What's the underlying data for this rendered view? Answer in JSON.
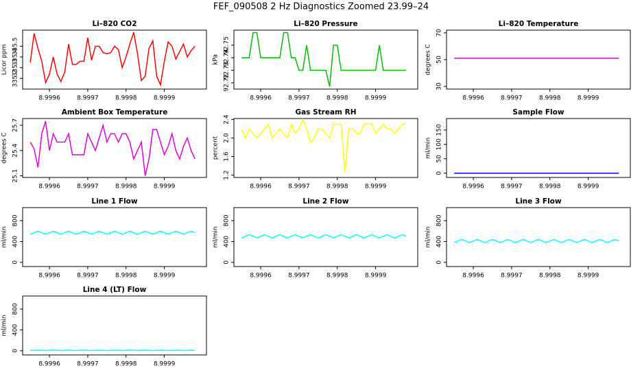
{
  "title": "FEF_090508  2 Hz Diagnostics Zoomed 23.99–24",
  "chart_data": [
    {
      "type": "line",
      "title": "Li–820 CO2",
      "y_label": "Licor ppm",
      "color": "#ff0000",
      "x": [
        8.99955,
        8.99956,
        8.99957,
        8.99958,
        8.99959,
        8.9996,
        8.99961,
        8.99962,
        8.99963,
        8.99964,
        8.99965,
        8.99966,
        8.99967,
        8.99968,
        8.99969,
        8.9997,
        8.99971,
        8.99972,
        8.99973,
        8.99974,
        8.99975,
        8.99976,
        8.99977,
        8.99978,
        8.99979,
        8.9998,
        8.99981,
        8.99982,
        8.99983,
        8.99984,
        8.99985,
        8.99986,
        8.99987,
        8.99988,
        8.99989,
        8.9999,
        8.99991,
        8.99992,
        8.99993,
        8.99994,
        8.99995,
        8.99996,
        8.99997,
        8.99998
      ],
      "values": [
        335.35,
        335.62,
        335.48,
        335.36,
        335.16,
        335.24,
        335.4,
        335.24,
        335.17,
        335.26,
        335.52,
        335.33,
        335.33,
        335.36,
        335.36,
        335.58,
        335.37,
        335.5,
        335.5,
        335.44,
        335.43,
        335.44,
        335.5,
        335.47,
        335.3,
        335.4,
        335.52,
        335.63,
        335.43,
        335.18,
        335.22,
        335.48,
        335.55,
        335.22,
        335.14,
        335.36,
        335.54,
        335.5,
        335.38,
        335.45,
        335.52,
        335.4,
        335.46,
        335.5
      ],
      "xlim": [
        8.99953,
        9.00001
      ],
      "xticks": [
        8.9996,
        8.9997,
        8.9998,
        8.9999
      ],
      "ylim": [
        335.1,
        335.65
      ],
      "yticks": [
        335.2,
        335.3,
        335.4,
        335.5
      ]
    },
    {
      "type": "line",
      "title": "Li–820 Pressure",
      "y_label": "kPa",
      "color": "#00c000",
      "x": [
        8.99955,
        8.99956,
        8.99957,
        8.99958,
        8.99959,
        8.9996,
        8.99961,
        8.99962,
        8.99963,
        8.99964,
        8.99965,
        8.99966,
        8.99967,
        8.99968,
        8.99969,
        8.9997,
        8.99971,
        8.99972,
        8.99973,
        8.99974,
        8.99975,
        8.99976,
        8.99977,
        8.99978,
        8.99979,
        8.9998,
        8.99981,
        8.99982,
        8.99983,
        8.99984,
        8.99985,
        8.99986,
        8.99987,
        8.99988,
        8.99989,
        8.9999,
        8.99991,
        8.99992,
        8.99993,
        8.99994,
        8.99995,
        8.99996,
        8.99997,
        8.99998
      ],
      "values": [
        92.74,
        92.74,
        92.74,
        92.76,
        92.76,
        92.74,
        92.74,
        92.74,
        92.74,
        92.74,
        92.74,
        92.76,
        92.76,
        92.74,
        92.74,
        92.73,
        92.73,
        92.75,
        92.73,
        92.73,
        92.73,
        92.73,
        92.73,
        92.717,
        92.75,
        92.75,
        92.73,
        92.73,
        92.73,
        92.73,
        92.73,
        92.73,
        92.73,
        92.73,
        92.73,
        92.73,
        92.75,
        92.73,
        92.73,
        92.73,
        92.73,
        92.73,
        92.73,
        92.73
      ],
      "xlim": [
        8.99953,
        9.00001
      ],
      "xticks": [
        8.9996,
        8.9997,
        8.9998,
        8.9999
      ],
      "ylim": [
        92.715,
        92.762
      ],
      "yticks": [
        92.72,
        92.73,
        92.74,
        92.75
      ]
    },
    {
      "type": "line",
      "title": "Li–820 Temperature",
      "y_label": "degrees C",
      "color": "#e000e0",
      "x": [
        8.99955,
        8.99956,
        8.99957,
        8.99958,
        8.99959,
        8.9996,
        8.99961,
        8.99962,
        8.99963,
        8.99964,
        8.99965,
        8.99966,
        8.99967,
        8.99968,
        8.99969,
        8.9997,
        8.99971,
        8.99972,
        8.99973,
        8.99974,
        8.99975,
        8.99976,
        8.99977,
        8.99978,
        8.99979,
        8.9998,
        8.99981,
        8.99982,
        8.99983,
        8.99984,
        8.99985,
        8.99986,
        8.99987,
        8.99988,
        8.99989,
        8.9999,
        8.99991,
        8.99992,
        8.99993,
        8.99994,
        8.99995,
        8.99996,
        8.99997,
        8.99998
      ],
      "values": [
        51,
        51,
        51,
        51,
        51,
        51,
        51,
        51,
        51,
        51,
        51,
        51,
        51,
        51,
        51,
        51,
        51,
        51,
        51,
        51,
        51,
        51,
        51,
        51,
        51,
        51,
        51,
        51,
        51,
        51,
        51,
        51,
        51,
        51,
        51,
        51,
        51,
        51,
        51,
        51,
        51,
        51,
        51,
        51
      ],
      "xlim": [
        8.99953,
        9.00001
      ],
      "xticks": [
        8.9996,
        8.9997,
        8.9998,
        8.9999
      ],
      "ylim": [
        28,
        72
      ],
      "yticks": [
        30,
        50,
        70
      ]
    },
    {
      "type": "line",
      "title": "Ambient Box Temperature",
      "y_label": "degrees C",
      "color": "#e000e0",
      "x": [
        8.99955,
        8.99956,
        8.99957,
        8.99958,
        8.99959,
        8.9996,
        8.99961,
        8.99962,
        8.99963,
        8.99964,
        8.99965,
        8.99966,
        8.99967,
        8.99968,
        8.99969,
        8.9997,
        8.99971,
        8.99972,
        8.99973,
        8.99974,
        8.99975,
        8.99976,
        8.99977,
        8.99978,
        8.99979,
        8.9998,
        8.99981,
        8.99982,
        8.99983,
        8.99984,
        8.99985,
        8.99986,
        8.99987,
        8.99988,
        8.99989,
        8.9999,
        8.99991,
        8.99992,
        8.99993,
        8.99994,
        8.99995,
        8.99996,
        8.99997,
        8.99998
      ],
      "values": [
        25.5,
        25.42,
        25.2,
        25.6,
        25.75,
        25.4,
        25.6,
        25.5,
        25.5,
        25.5,
        25.6,
        25.35,
        25.35,
        25.35,
        25.35,
        25.6,
        25.5,
        25.4,
        25.55,
        25.7,
        25.5,
        25.6,
        25.6,
        25.5,
        25.6,
        25.6,
        25.5,
        25.3,
        25.4,
        25.5,
        25.1,
        25.3,
        25.65,
        25.65,
        25.5,
        25.35,
        25.45,
        25.6,
        25.4,
        25.3,
        25.45,
        25.55,
        25.4,
        25.3
      ],
      "xlim": [
        8.99953,
        9.00001
      ],
      "xticks": [
        8.9996,
        8.9997,
        8.9998,
        8.9999
      ],
      "ylim": [
        25.08,
        25.78
      ],
      "yticks": [
        25.1,
        25.4,
        25.7
      ]
    },
    {
      "type": "line",
      "title": "Gas Stream RH",
      "y_label": "percent",
      "color": "#ffff00",
      "x": [
        8.99955,
        8.99956,
        8.99957,
        8.99958,
        8.99959,
        8.9996,
        8.99961,
        8.99962,
        8.99963,
        8.99964,
        8.99965,
        8.99966,
        8.99967,
        8.99968,
        8.99969,
        8.9997,
        8.99971,
        8.99972,
        8.99973,
        8.99974,
        8.99975,
        8.99976,
        8.99977,
        8.99978,
        8.99979,
        8.9998,
        8.99981,
        8.99982,
        8.99983,
        8.99984,
        8.99985,
        8.99986,
        8.99987,
        8.99988,
        8.99989,
        8.9999,
        8.99991,
        8.99992,
        8.99993,
        8.99994,
        8.99995,
        8.99996,
        8.99997,
        8.99998
      ],
      "values": [
        2.2,
        2.0,
        2.2,
        2.1,
        2.0,
        2.1,
        2.2,
        2.3,
        2.0,
        2.1,
        2.2,
        2.1,
        2.0,
        2.3,
        2.1,
        2.2,
        2.4,
        2.2,
        1.9,
        2.0,
        2.2,
        2.2,
        2.1,
        2.0,
        2.3,
        2.3,
        2.3,
        1.25,
        2.2,
        2.2,
        2.1,
        2.1,
        2.3,
        2.3,
        2.3,
        2.1,
        2.2,
        2.3,
        2.2,
        2.2,
        2.1,
        2.2,
        2.3,
        2.3
      ],
      "xlim": [
        8.99953,
        9.00001
      ],
      "xticks": [
        8.9996,
        8.9997,
        8.9998,
        8.9999
      ],
      "ylim": [
        1.15,
        2.42
      ],
      "yticks": [
        1.2,
        1.6,
        {
          "value": 2,
          "label": "2.0"
        },
        2.4
      ]
    },
    {
      "type": "line",
      "title": "Sample Flow",
      "y_label": "ml/min",
      "color": "#0000ff",
      "x": [
        8.99955,
        8.99956,
        8.99957,
        8.99958,
        8.99959,
        8.9996,
        8.99961,
        8.99962,
        8.99963,
        8.99964,
        8.99965,
        8.99966,
        8.99967,
        8.99968,
        8.99969,
        8.9997,
        8.99971,
        8.99972,
        8.99973,
        8.99974,
        8.99975,
        8.99976,
        8.99977,
        8.99978,
        8.99979,
        8.9998,
        8.99981,
        8.99982,
        8.99983,
        8.99984,
        8.99985,
        8.99986,
        8.99987,
        8.99988,
        8.99989,
        8.9999,
        8.99991,
        8.99992,
        8.99993,
        8.99994,
        8.99995,
        8.99996,
        8.99997,
        8.99998
      ],
      "values": [
        0,
        0,
        0,
        0,
        0,
        0,
        0,
        0,
        0,
        0,
        0,
        0,
        0,
        0,
        0,
        0,
        0,
        0,
        0,
        0,
        0,
        0,
        0,
        0,
        0,
        0,
        0,
        0,
        0,
        0,
        0,
        0,
        0,
        0,
        0,
        0,
        0,
        0,
        0,
        0,
        0,
        0,
        0,
        0
      ],
      "xlim": [
        8.99953,
        9.00001
      ],
      "xticks": [
        8.9996,
        8.9997,
        8.9998,
        8.9999
      ],
      "ylim": [
        -15,
        190
      ],
      "yticks": [
        0,
        50,
        100,
        150
      ]
    },
    {
      "type": "line",
      "title": "Line 1 Flow",
      "y_label": "ml/min",
      "color": "#00ffff",
      "x": [
        8.99955,
        8.99956,
        8.99957,
        8.99958,
        8.99959,
        8.9996,
        8.99961,
        8.99962,
        8.99963,
        8.99964,
        8.99965,
        8.99966,
        8.99967,
        8.99968,
        8.99969,
        8.9997,
        8.99971,
        8.99972,
        8.99973,
        8.99974,
        8.99975,
        8.99976,
        8.99977,
        8.99978,
        8.99979,
        8.9998,
        8.99981,
        8.99982,
        8.99983,
        8.99984,
        8.99985,
        8.99986,
        8.99987,
        8.99988,
        8.99989,
        8.9999,
        8.99991,
        8.99992,
        8.99993,
        8.99994,
        8.99995,
        8.99996,
        8.99997,
        8.99998
      ],
      "values": [
        540,
        570,
        600,
        570,
        540,
        570,
        600,
        570,
        540,
        570,
        600,
        570,
        540,
        570,
        600,
        570,
        540,
        570,
        600,
        570,
        540,
        570,
        600,
        570,
        540,
        570,
        600,
        570,
        540,
        570,
        600,
        570,
        540,
        570,
        600,
        570,
        540,
        570,
        600,
        570,
        540,
        570,
        600,
        570
      ],
      "xlim": [
        8.99953,
        9.00001
      ],
      "xticks": [
        8.9996,
        8.9997,
        8.9998,
        8.9999
      ],
      "ylim": [
        -80,
        1050
      ],
      "yticks": [
        0,
        400,
        800
      ]
    },
    {
      "type": "line",
      "title": "Line 2 Flow",
      "y_label": "ml/min",
      "color": "#00ffff",
      "x": [
        8.99955,
        8.99956,
        8.99957,
        8.99958,
        8.99959,
        8.9996,
        8.99961,
        8.99962,
        8.99963,
        8.99964,
        8.99965,
        8.99966,
        8.99967,
        8.99968,
        8.99969,
        8.9997,
        8.99971,
        8.99972,
        8.99973,
        8.99974,
        8.99975,
        8.99976,
        8.99977,
        8.99978,
        8.99979,
        8.9998,
        8.99981,
        8.99982,
        8.99983,
        8.99984,
        8.99985,
        8.99986,
        8.99987,
        8.99988,
        8.99989,
        8.9999,
        8.99991,
        8.99992,
        8.99993,
        8.99994,
        8.99995,
        8.99996,
        8.99997,
        8.99998
      ],
      "values": [
        470,
        500,
        530,
        500,
        470,
        500,
        530,
        500,
        470,
        500,
        530,
        500,
        470,
        500,
        530,
        500,
        470,
        500,
        530,
        500,
        470,
        500,
        530,
        500,
        470,
        500,
        530,
        500,
        470,
        500,
        530,
        500,
        470,
        500,
        530,
        500,
        470,
        500,
        530,
        500,
        470,
        500,
        530,
        500
      ],
      "xlim": [
        8.99953,
        9.00001
      ],
      "xticks": [
        8.9996,
        8.9997,
        8.9998,
        8.9999
      ],
      "ylim": [
        -80,
        1050
      ],
      "yticks": [
        0,
        400,
        800
      ]
    },
    {
      "type": "line",
      "title": "Line 3 Flow",
      "y_label": "ml/min",
      "color": "#00ffff",
      "x": [
        8.99955,
        8.99956,
        8.99957,
        8.99958,
        8.99959,
        8.9996,
        8.99961,
        8.99962,
        8.99963,
        8.99964,
        8.99965,
        8.99966,
        8.99967,
        8.99968,
        8.99969,
        8.9997,
        8.99971,
        8.99972,
        8.99973,
        8.99974,
        8.99975,
        8.99976,
        8.99977,
        8.99978,
        8.99979,
        8.9998,
        8.99981,
        8.99982,
        8.99983,
        8.99984,
        8.99985,
        8.99986,
        8.99987,
        8.99988,
        8.99989,
        8.9999,
        8.99991,
        8.99992,
        8.99993,
        8.99994,
        8.99995,
        8.99996,
        8.99997,
        8.99998
      ],
      "values": [
        380,
        410,
        440,
        410,
        380,
        410,
        440,
        410,
        380,
        410,
        440,
        410,
        380,
        410,
        440,
        410,
        380,
        410,
        440,
        410,
        380,
        410,
        440,
        410,
        380,
        410,
        440,
        410,
        380,
        410,
        440,
        410,
        380,
        410,
        440,
        410,
        380,
        410,
        440,
        410,
        380,
        410,
        440,
        410
      ],
      "xlim": [
        8.99953,
        9.00001
      ],
      "xticks": [
        8.9996,
        8.9997,
        8.9998,
        8.9999
      ],
      "ylim": [
        -80,
        1050
      ],
      "yticks": [
        0,
        400,
        800
      ]
    },
    {
      "type": "line",
      "title": "Line 4 (LT) Flow",
      "y_label": "ml/min",
      "color": "#00ffff",
      "x": [
        8.99955,
        8.99956,
        8.99957,
        8.99958,
        8.99959,
        8.9996,
        8.99961,
        8.99962,
        8.99963,
        8.99964,
        8.99965,
        8.99966,
        8.99967,
        8.99968,
        8.99969,
        8.9997,
        8.99971,
        8.99972,
        8.99973,
        8.99974,
        8.99975,
        8.99976,
        8.99977,
        8.99978,
        8.99979,
        8.9998,
        8.99981,
        8.99982,
        8.99983,
        8.99984,
        8.99985,
        8.99986,
        8.99987,
        8.99988,
        8.99989,
        8.9999,
        8.99991,
        8.99992,
        8.99993,
        8.99994,
        8.99995,
        8.99996,
        8.99997,
        8.99998
      ],
      "values": [
        5,
        8,
        12,
        8,
        5,
        8,
        12,
        8,
        5,
        8,
        12,
        8,
        5,
        8,
        12,
        8,
        5,
        8,
        12,
        8,
        5,
        8,
        12,
        8,
        5,
        8,
        12,
        8,
        5,
        8,
        12,
        8,
        5,
        8,
        12,
        8,
        5,
        8,
        12,
        8,
        5,
        8,
        12,
        8
      ],
      "xlim": [
        8.99953,
        9.00001
      ],
      "xticks": [
        8.9996,
        8.9997,
        8.9998,
        8.9999
      ],
      "ylim": [
        -80,
        1050
      ],
      "yticks": [
        0,
        400,
        800
      ]
    }
  ]
}
